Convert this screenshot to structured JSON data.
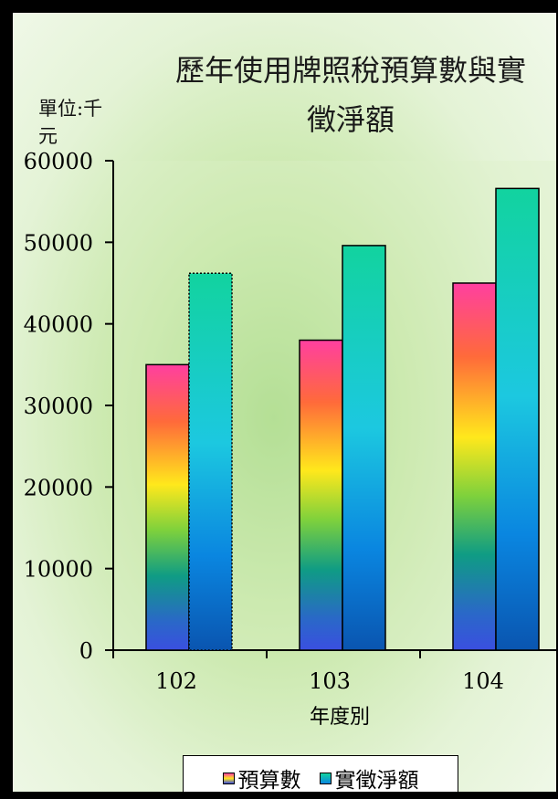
{
  "chart_data": {
    "type": "bar",
    "title": "歷年使用牌照稅預算數與實徵淨額",
    "title_lines": [
      "歷年使用牌照稅預算數與實",
      "徵淨額"
    ],
    "unit_label": "單位:千元",
    "xlabel": "年度別",
    "categories": [
      "102",
      "103",
      "104"
    ],
    "series": [
      {
        "name": "預算數",
        "values": [
          35000,
          38000,
          45000
        ]
      },
      {
        "name": "實徵淨額",
        "values": [
          46200,
          49600,
          56600
        ]
      }
    ],
    "ylim": [
      0,
      60000
    ],
    "yticks": [
      "0",
      "10000",
      "20000",
      "30000",
      "40000",
      "50000",
      "60000"
    ],
    "legend_position": "bottom",
    "grid": false
  }
}
